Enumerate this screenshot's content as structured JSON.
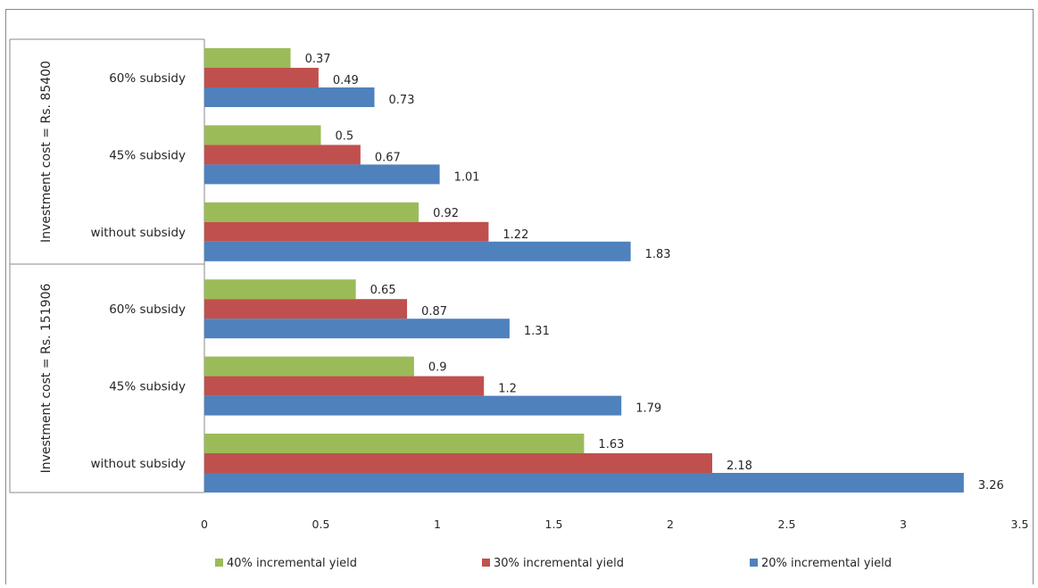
{
  "chart_data": {
    "type": "bar",
    "orientation": "horizontal",
    "title": "",
    "xlabel": "",
    "ylabel": "",
    "xlim": [
      0,
      3.5
    ],
    "xticks": [
      "0",
      "0.5",
      "1",
      "1.5",
      "2",
      "2.5",
      "3",
      "3.5"
    ],
    "grid": false,
    "legend_position": "bottom",
    "groups": [
      {
        "label": "Investment cost = Rs. 85400",
        "categories": [
          "60% subsidy",
          "45% subsidy",
          "without subsidy"
        ]
      },
      {
        "label": "Investment cost = Rs. 151906",
        "categories": [
          "60% subsidy",
          "45% subsidy",
          "without subsidy"
        ]
      }
    ],
    "series": [
      {
        "name": "40% incremental yield",
        "color": "#9bbb59",
        "values": [
          0.37,
          0.5,
          0.92,
          0.65,
          0.9,
          1.63
        ],
        "labels": [
          "0.37",
          "0.5",
          "0.92",
          "0.65",
          "0.9",
          "1.63"
        ]
      },
      {
        "name": "30% incremental yield",
        "color": "#c0504d",
        "values": [
          0.49,
          0.67,
          1.22,
          0.87,
          1.2,
          2.18
        ],
        "labels": [
          "0.49",
          "0.67",
          "1.22",
          "0.87",
          "1.2",
          "2.18"
        ]
      },
      {
        "name": "20% incremental yield",
        "color": "#4f81bd",
        "values": [
          0.73,
          1.01,
          1.83,
          1.31,
          1.79,
          3.26
        ],
        "labels": [
          "0.73",
          "1.01",
          "1.83",
          "1.31",
          "1.79",
          "3.26"
        ]
      }
    ]
  },
  "legend": {
    "items": [
      {
        "label": "40% incremental yield",
        "color": "#9bbb59"
      },
      {
        "label": "30% incremental yield",
        "color": "#c0504d"
      },
      {
        "label": "20% incremental yield",
        "color": "#4f81bd"
      }
    ]
  }
}
